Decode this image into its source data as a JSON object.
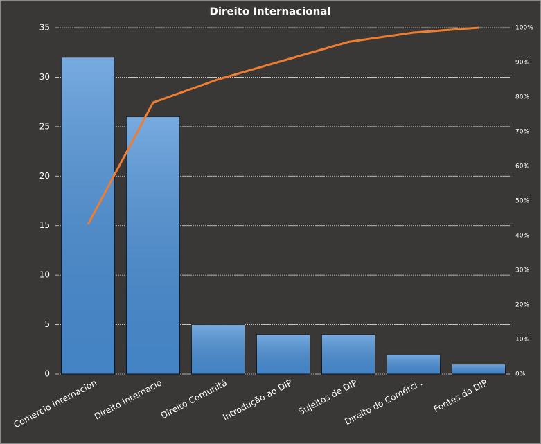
{
  "chart_data": {
    "type": "pareto",
    "title": "Direito  Internacional",
    "categories": [
      "Comércio Internacion",
      "Direito Internacio",
      "Direito Comunitá",
      "Introdução  ao DIP",
      "Sujeitos de DIP",
      "Direito do Comérci .",
      "Fontes do DIP"
    ],
    "series": [
      {
        "type": "bar",
        "color": "#4a8fd6",
        "values": [
          32,
          26,
          5,
          4,
          4,
          2,
          1
        ]
      },
      {
        "type": "line",
        "axis": "y2",
        "color": "#ed7d31",
        "values": [
          43.2,
          78.4,
          85.1,
          90.5,
          95.9,
          98.6,
          100
        ]
      }
    ],
    "ylim": [
      0,
      35
    ],
    "yticks": [
      0,
      5,
      10,
      15,
      20,
      25,
      30,
      35
    ],
    "y2lim": [
      0,
      100
    ],
    "y2ticks": [
      {
        "value": 0,
        "label": "0%"
      },
      {
        "value": 10,
        "label": "10%"
      },
      {
        "value": 20,
        "label": "20%"
      },
      {
        "value": 30,
        "label": "30%"
      },
      {
        "value": 40,
        "label": "40%"
      },
      {
        "value": 50,
        "label": "50%"
      },
      {
        "value": 60,
        "label": "60%"
      },
      {
        "value": 70,
        "label": "70%"
      },
      {
        "value": 80,
        "label": "80%"
      },
      {
        "value": 90,
        "label": "90%"
      },
      {
        "value": 100,
        "label": "100%"
      }
    ],
    "grid": true
  }
}
